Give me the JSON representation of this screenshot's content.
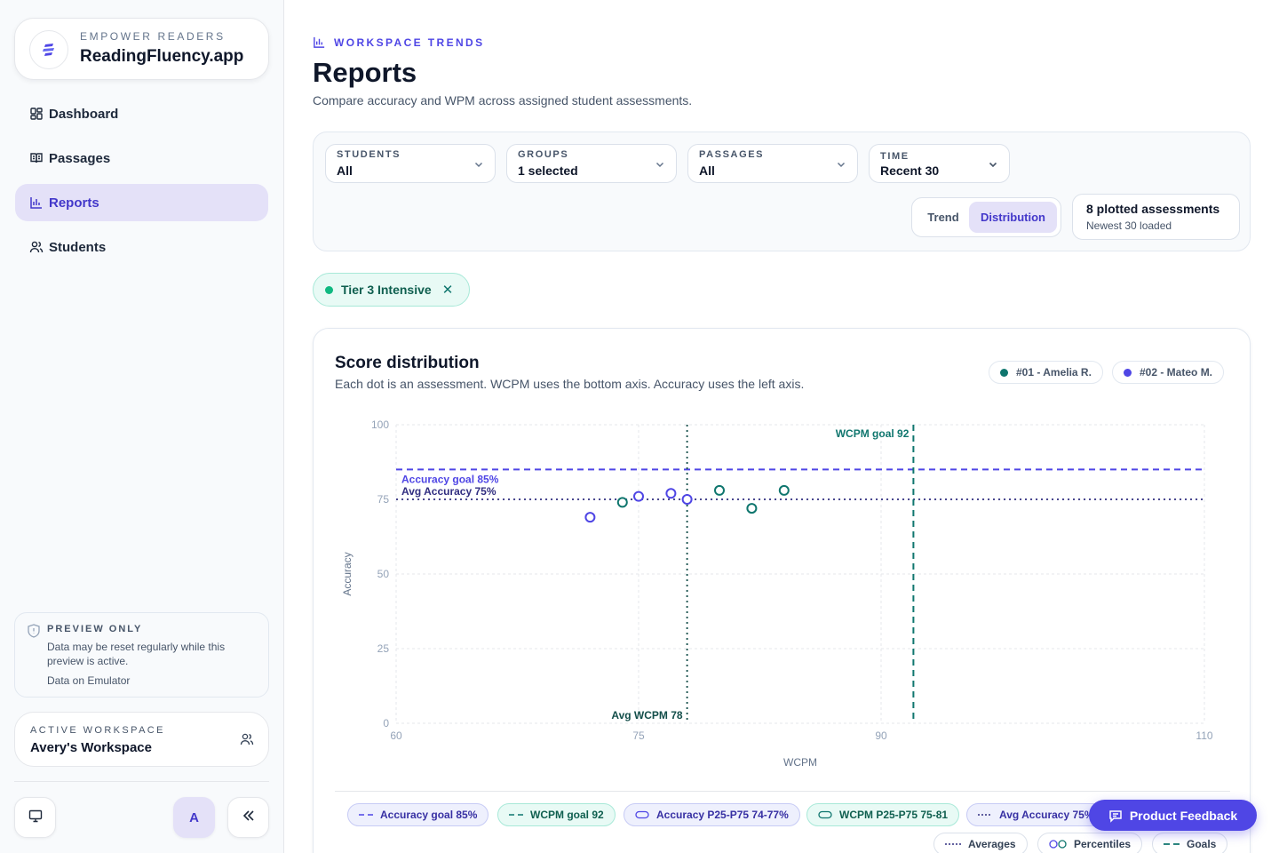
{
  "brand": {
    "eyebrow": "EMPOWER READERS",
    "name": "ReadingFluency.app",
    "accent": "#4f46e5"
  },
  "sidebar": {
    "items": [
      {
        "label": "Dashboard",
        "icon": "dashboard-icon",
        "active": false
      },
      {
        "label": "Passages",
        "icon": "book-icon",
        "active": false
      },
      {
        "label": "Reports",
        "icon": "bar-chart-icon",
        "active": true
      },
      {
        "label": "Students",
        "icon": "users-icon",
        "active": false
      }
    ],
    "preview": {
      "title": "PREVIEW ONLY",
      "text": "Data may be reset regularly while this preview is active.",
      "sub": "Data on Emulator"
    },
    "workspace": {
      "eyebrow": "ACTIVE WORKSPACE",
      "name": "Avery's Workspace"
    },
    "avatar_initial": "A"
  },
  "header": {
    "eyebrow": "WORKSPACE TRENDS",
    "title": "Reports",
    "subtitle": "Compare accuracy and WPM across assigned student assessments."
  },
  "filters": {
    "students": {
      "label": "STUDENTS",
      "value": "All"
    },
    "groups": {
      "label": "GROUPS",
      "value": "1 selected"
    },
    "passages": {
      "label": "PASSAGES",
      "value": "All"
    },
    "time": {
      "label": "TIME",
      "value": "Recent 30"
    },
    "view_toggle": {
      "trend": "Trend",
      "distribution": "Distribution",
      "selected": "distribution"
    },
    "summary": {
      "title": "8 plotted assessments",
      "sub": "Newest 30 loaded"
    }
  },
  "active_chip": {
    "label": "Tier 3 Intensive",
    "remove": "✕"
  },
  "chart_card": {
    "title": "Score distribution",
    "subtitle": "Each dot is an assessment. WCPM uses the bottom axis. Accuracy uses the left axis.",
    "legend": [
      {
        "label": "#01 - Amelia R.",
        "color": "#0f766e"
      },
      {
        "label": "#02 - Mateo M.",
        "color": "#4f46e5"
      }
    ],
    "bottom_legend": [
      {
        "label": "Accuracy goal 85%",
        "style": "purple",
        "icon": "dashed-line-icon"
      },
      {
        "label": "WCPM goal 92",
        "style": "teal",
        "icon": "dashed-line-icon"
      },
      {
        "label": "Accuracy P25-P75 74-77%",
        "style": "purple",
        "icon": "oval-icon"
      },
      {
        "label": "WCPM P25-P75 75-81",
        "style": "teal",
        "icon": "oval-icon"
      },
      {
        "label": "Avg Accuracy 75%",
        "style": "purple",
        "icon": "dotted-line-icon"
      }
    ],
    "bottom_toggles": [
      {
        "label": "Averages",
        "icon": "dotted-line-icon"
      },
      {
        "label": "Percentiles",
        "icon": "circles-icon"
      },
      {
        "label": "Goals",
        "icon": "dashed-line-icon"
      }
    ]
  },
  "chart_data": {
    "type": "scatter",
    "xlabel": "WCPM",
    "ylabel": "Accuracy",
    "xlim": [
      60,
      110
    ],
    "ylim": [
      0,
      100
    ],
    "xticks": [
      60,
      75,
      90,
      110
    ],
    "yticks": [
      0,
      25,
      50,
      75,
      100
    ],
    "grid": true,
    "series": [
      {
        "name": "#01 - Amelia R.",
        "color": "#0f766e",
        "points": [
          [
            74,
            74
          ],
          [
            80,
            78
          ],
          [
            82,
            72
          ],
          [
            84,
            78
          ]
        ]
      },
      {
        "name": "#02 - Mateo M.",
        "color": "#4f46e5",
        "points": [
          [
            72,
            69
          ],
          [
            75,
            76
          ],
          [
            77,
            77
          ],
          [
            78,
            75
          ]
        ]
      }
    ],
    "reference_lines": [
      {
        "axis": "y",
        "value": 85,
        "label": "Accuracy goal 85%",
        "style": "dashed",
        "color": "#4f46e5"
      },
      {
        "axis": "y",
        "value": 75,
        "label": "Avg Accuracy 75%",
        "style": "dotted",
        "color": "#312e81"
      },
      {
        "axis": "x",
        "value": 92,
        "label": "WCPM goal 92",
        "style": "dashed",
        "color": "#0f766e"
      },
      {
        "axis": "x",
        "value": 78,
        "label": "Avg WCPM 78",
        "style": "dotted",
        "color": "#134e4a"
      }
    ]
  },
  "feedback": {
    "label": "Product Feedback"
  }
}
